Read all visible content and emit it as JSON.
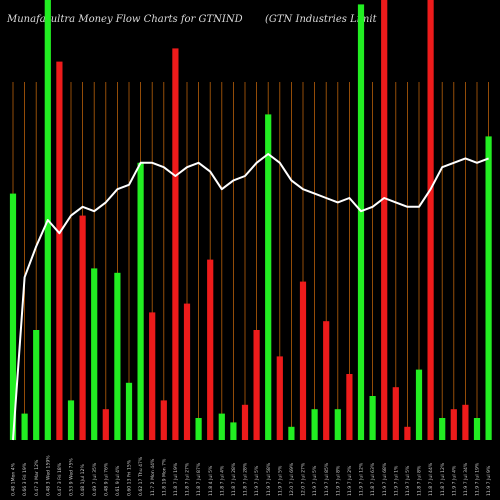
{
  "header": {
    "title_left": "Munafa_ultra  Money Flow  Charts for GTNIND",
    "title_right": "(GTN  Industries Limit"
  },
  "colors": {
    "background": "#000000",
    "grid": "#b8600b",
    "up": "#22ee22",
    "down": "#ee1b1b",
    "line": "#ffffff"
  },
  "chart_data": {
    "type": "bar",
    "title": "Munafa_ultra  Money Flow  Charts for GTNIND",
    "subtitle": "(GTN  Industries Limit",
    "ylim": [
      0,
      100
    ],
    "grid": true,
    "categories": [
      "0.48 1Mon 4%",
      "0.66 3 Fri 19%",
      "0.47 3 Mar 12%",
      "0.48 3 Wed 159%",
      "0.47 3 Fri 18%",
      "0.53 9 Wed 75%",
      "0.48 1Jul 12%",
      "0.49 7 Jul 35%",
      "0.48 9 Jul 76%",
      "0.61 9 Jul 4%",
      "0.60 13 Fri 15%",
      "0.62 17 Thu 47%",
      "11.7 2 Mon 44%",
      "11.8 19 Mon 7%",
      "11.8 7 Jul 19%",
      "11.8 7 Jul 27%",
      "11.8 7 Jul 87%",
      "11.8 4 Jul 5%",
      "11.8 7 Jul 4%",
      "11.8 7 Jul 28%",
      "11.8 7 Jul 28%",
      "11.9 7 Jul 5%",
      "11.9 7 Jul 58%",
      "11.9 7 Jul 5%",
      "12.0 7 Jul 69%",
      "12.0 7 Jul 27%",
      "11.9 7 Jul 5%",
      "11.9 7 Jul 85%",
      "11.9 7 Jul 8%",
      "11.9 7 Jul 2%",
      "11.9 7 Jul 12%",
      "11.8 7 Jul 63%",
      "11.9 7 Jul 68%",
      "11.9 7 Jul 1%",
      "11.9 7 Jul 5%",
      "11.8 7 Jul 8%",
      "11.8 7 Jul 44%",
      "11.8 7 Jul 12%",
      "11.9 7 Jul 4%",
      "11.9 7 Jul 34%",
      "11.9 7 Jul 19%",
      "11.9 7 Jul 9%"
    ],
    "series": [
      {
        "colors": [
          "up",
          "up",
          "up",
          "up",
          "down",
          "up",
          "down",
          "up",
          "down",
          "up",
          "up",
          "up",
          "down",
          "down",
          "down",
          "down",
          "up",
          "down",
          "up",
          "up",
          "down",
          "down",
          "up",
          "down",
          "up",
          "down",
          "up",
          "down",
          "up",
          "down",
          "up",
          "up",
          "down",
          "down",
          "down",
          "up",
          "down",
          "up",
          "down",
          "down",
          "up",
          "up"
        ],
        "values": [
          56,
          6,
          25,
          100,
          86,
          9,
          51,
          39,
          7,
          38,
          13,
          63,
          29,
          9,
          89,
          31,
          5,
          41,
          6,
          4,
          8,
          25,
          74,
          19,
          3,
          36,
          7,
          27,
          7,
          15,
          99,
          10,
          100,
          12,
          3,
          16,
          100,
          5,
          7,
          8,
          5,
          69
        ]
      },
      {
        "type": "line",
        "values": [
          0,
          37,
          44,
          50,
          47,
          51,
          53,
          52,
          54,
          57,
          58,
          63,
          63,
          62,
          60,
          62,
          63,
          61,
          57,
          59,
          60,
          63,
          65,
          63,
          59,
          57,
          56,
          55,
          54,
          55,
          52,
          53,
          55,
          54,
          53,
          53,
          57,
          62,
          63,
          64,
          63,
          64
        ]
      }
    ]
  }
}
